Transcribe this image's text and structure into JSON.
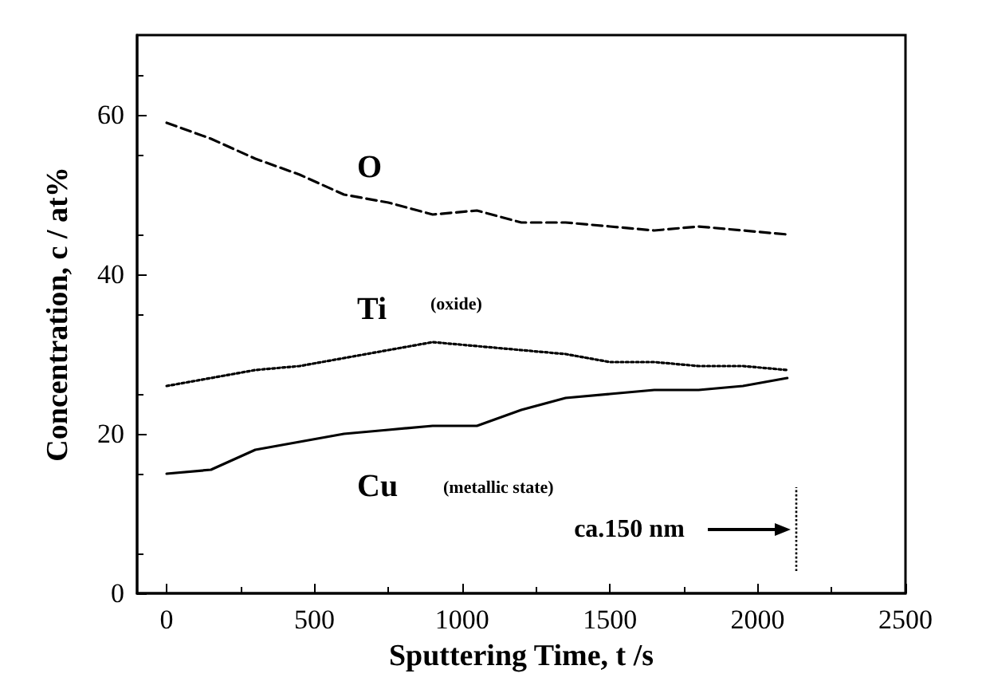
{
  "chart_data": {
    "type": "line",
    "xlabel": "Sputtering Time, t /s",
    "ylabel": "Concentration, c / at%",
    "xlim": [
      -100,
      2500
    ],
    "xticks": [
      0,
      500,
      1000,
      1500,
      2000,
      2500
    ],
    "ylim": [
      0,
      70
    ],
    "yticks": [
      0,
      20,
      40,
      60
    ],
    "marker": "none",
    "x": [
      0,
      150,
      300,
      450,
      600,
      750,
      900,
      1050,
      1200,
      1350,
      1500,
      1650,
      1800,
      1950,
      2100
    ],
    "series": [
      {
        "color": "#000000",
        "line_style": "dashed",
        "values": [
          59,
          57,
          54.5,
          52.5,
          50,
          49,
          47.5,
          48,
          46.5,
          46.5,
          46,
          45.5,
          46,
          45.5,
          45
        ]
      },
      {
        "color": "#000000",
        "line_style": "dotted",
        "values": [
          26,
          27,
          28,
          28.5,
          29.5,
          30.5,
          31.5,
          31,
          30.5,
          30,
          29,
          29,
          28.5,
          28.5,
          28
        ]
      },
      {
        "color": "#000000",
        "line_style": "solid",
        "values": [
          15,
          15.5,
          18,
          19,
          20,
          20.5,
          21,
          21,
          23,
          24.5,
          25,
          25.5,
          25.5,
          26,
          27
        ]
      }
    ],
    "ref_lines": [
      {
        "axis": "x",
        "value": 2130,
        "label": "ca.150 nm",
        "line_style": "dotted",
        "color": "#000000"
      }
    ],
    "annotations": [
      "O",
      "Ti",
      "(oxide)",
      "Cu",
      "(metallic state)"
    ]
  }
}
